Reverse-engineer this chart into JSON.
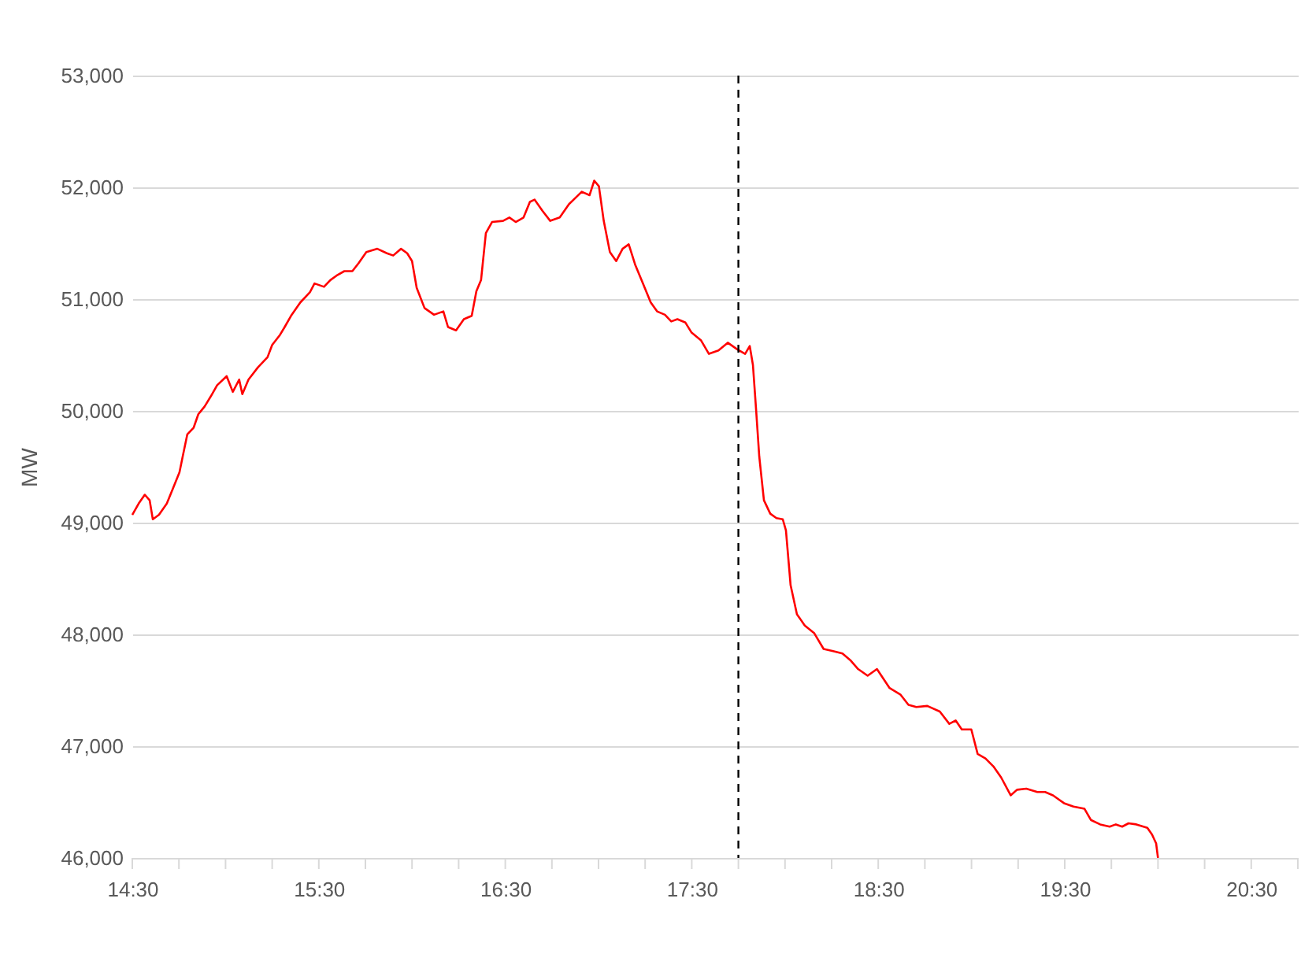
{
  "chart_data": {
    "type": "line",
    "ylabel": "MW",
    "x": [
      14.5,
      14.534,
      14.567,
      14.593,
      14.61,
      14.643,
      14.685,
      14.719,
      14.753,
      14.77,
      14.795,
      14.829,
      14.854,
      14.888,
      14.921,
      14.955,
      15.006,
      15.039,
      15.073,
      15.09,
      15.123,
      15.174,
      15.225,
      15.25,
      15.292,
      15.317,
      15.351,
      15.401,
      15.452,
      15.477,
      15.528,
      15.562,
      15.595,
      15.637,
      15.68,
      15.713,
      15.755,
      15.814,
      15.865,
      15.899,
      15.941,
      15.974,
      16.0,
      16.025,
      16.067,
      16.118,
      16.168,
      16.193,
      16.236,
      16.278,
      16.32,
      16.345,
      16.37,
      16.396,
      16.429,
      16.488,
      16.522,
      16.556,
      16.598,
      16.632,
      16.657,
      16.699,
      16.741,
      16.792,
      16.842,
      16.91,
      16.952,
      16.977,
      17.002,
      17.028,
      17.061,
      17.095,
      17.129,
      17.162,
      17.196,
      17.238,
      17.28,
      17.314,
      17.356,
      17.39,
      17.423,
      17.466,
      17.499,
      17.55,
      17.592,
      17.643,
      17.693,
      17.744,
      17.786,
      17.811,
      17.828,
      17.845,
      17.862,
      17.887,
      17.921,
      17.954,
      17.988,
      18.005,
      18.03,
      18.064,
      18.106,
      18.157,
      18.207,
      18.258,
      18.308,
      18.35,
      18.392,
      18.443,
      18.493,
      18.561,
      18.62,
      18.662,
      18.704,
      18.763,
      18.83,
      18.881,
      18.915,
      18.948,
      18.999,
      19.033,
      19.075,
      19.117,
      19.159,
      19.21,
      19.244,
      19.294,
      19.353,
      19.395,
      19.437,
      19.496,
      19.547,
      19.606,
      19.64,
      19.69,
      19.741,
      19.774,
      19.808,
      19.842,
      19.884,
      19.943,
      19.968,
      19.99,
      20.0
    ],
    "series": [
      {
        "color": "#ff0000",
        "values": [
          49070,
          49170,
          49250,
          49200,
          49030,
          49070,
          49170,
          49310,
          49450,
          49590,
          49790,
          49850,
          49970,
          50040,
          50130,
          50230,
          50310,
          50170,
          50280,
          50150,
          50280,
          50390,
          50480,
          50590,
          50680,
          50750,
          50850,
          50970,
          51060,
          51140,
          51110,
          51170,
          51210,
          51250,
          51250,
          51320,
          51420,
          51450,
          51410,
          51390,
          51450,
          51410,
          51340,
          51100,
          50920,
          50860,
          50890,
          50750,
          50720,
          50820,
          50850,
          51070,
          51170,
          51590,
          51690,
          51700,
          51730,
          51690,
          51730,
          51870,
          51890,
          51790,
          51700,
          51730,
          51850,
          51960,
          51930,
          52060,
          52010,
          51700,
          51420,
          51340,
          51450,
          51490,
          51310,
          51140,
          50970,
          50890,
          50860,
          50800,
          50820,
          50790,
          50700,
          50630,
          50510,
          50540,
          50610,
          50550,
          50510,
          50580,
          50410,
          50010,
          49590,
          49200,
          49080,
          49040,
          49030,
          48930,
          48440,
          48180,
          48080,
          48010,
          47870,
          47850,
          47830,
          47770,
          47690,
          47630,
          47690,
          47520,
          47460,
          47370,
          47350,
          47360,
          47310,
          47200,
          47230,
          47150,
          47150,
          46930,
          46890,
          46820,
          46720,
          46560,
          46610,
          46620,
          46590,
          46590,
          46560,
          46490,
          46460,
          46440,
          46340,
          46300,
          46280,
          46300,
          46280,
          46310,
          46300,
          46270,
          46210,
          46130,
          46000
        ]
      }
    ],
    "xlim": [
      14.5,
      20.75
    ],
    "xticks": [
      {
        "value": 14.5,
        "label": "14:30"
      },
      {
        "value": 14.75,
        "label": null
      },
      {
        "value": 15.0,
        "label": null
      },
      {
        "value": 15.25,
        "label": null
      },
      {
        "value": 15.5,
        "label": "15:30"
      },
      {
        "value": 15.75,
        "label": null
      },
      {
        "value": 16.0,
        "label": null
      },
      {
        "value": 16.25,
        "label": null
      },
      {
        "value": 16.5,
        "label": "16:30"
      },
      {
        "value": 16.75,
        "label": null
      },
      {
        "value": 17.0,
        "label": null
      },
      {
        "value": 17.25,
        "label": null
      },
      {
        "value": 17.5,
        "label": "17:30"
      },
      {
        "value": 17.75,
        "label": null
      },
      {
        "value": 18.0,
        "label": null
      },
      {
        "value": 18.25,
        "label": null
      },
      {
        "value": 18.5,
        "label": "18:30"
      },
      {
        "value": 18.75,
        "label": null
      },
      {
        "value": 19.0,
        "label": null
      },
      {
        "value": 19.25,
        "label": null
      },
      {
        "value": 19.5,
        "label": "19:30"
      },
      {
        "value": 19.75,
        "label": null
      },
      {
        "value": 20.0,
        "label": null
      },
      {
        "value": 20.25,
        "label": null
      },
      {
        "value": 20.5,
        "label": "20:30"
      },
      {
        "value": 20.75,
        "label": null
      }
    ],
    "ylim": [
      46000,
      53000
    ],
    "yticks": [
      {
        "value": 46000,
        "label": "46,000"
      },
      {
        "value": 47000,
        "label": "47,000"
      },
      {
        "value": 48000,
        "label": "48,000"
      },
      {
        "value": 49000,
        "label": "49,000"
      },
      {
        "value": 50000,
        "label": "50,000"
      },
      {
        "value": 51000,
        "label": "51,000"
      },
      {
        "value": 52000,
        "label": "52,000"
      },
      {
        "value": 53000,
        "label": "53,000"
      }
    ],
    "grid": "y",
    "line_style": "solid",
    "marker": "none",
    "ref_lines": [
      {
        "axis": "x",
        "value": 17.75,
        "label": null,
        "color": "#000000",
        "line_style": "dashed"
      }
    ]
  }
}
